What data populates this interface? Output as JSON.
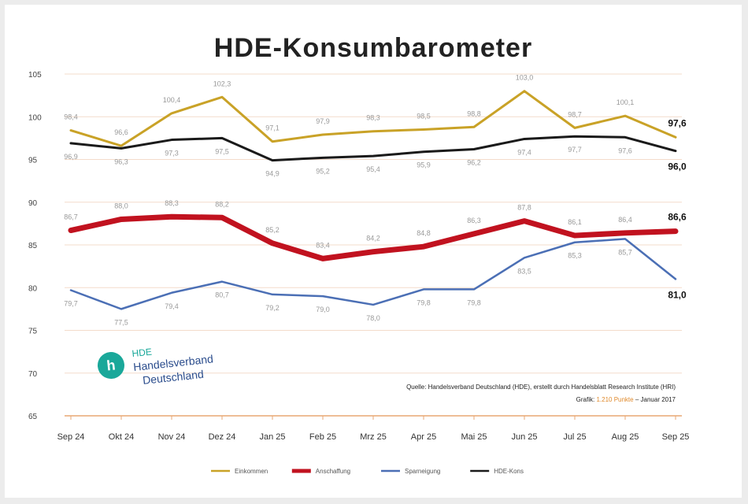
{
  "chart_data": {
    "type": "line",
    "title": "HDE-Konsumbarometer",
    "categories": [
      "Sep 24",
      "Okt 24",
      "Nov 24",
      "Dez 24",
      "Jan 25",
      "Feb 25",
      "Mrz 25",
      "Apr 25",
      "Mai 25",
      "Jun 25",
      "Jul 25",
      "Aug 25",
      "Sep 25"
    ],
    "ylim": [
      65,
      105
    ],
    "yticks": [
      "105",
      "100",
      "95",
      "90",
      "85",
      "80",
      "75",
      "70",
      "65"
    ],
    "grid": true,
    "legend_position": "bottom",
    "series": [
      {
        "name": "Einkommen",
        "color": "#c9a227",
        "width": 3,
        "values": [
          98.4,
          96.6,
          100.4,
          102.3,
          97.1,
          97.9,
          98.3,
          98.5,
          98.8,
          103.0,
          98.7,
          100.1,
          97.6
        ],
        "labels": [
          "98,4",
          "96,6",
          "100,4",
          "102,3",
          "97,1",
          "97,9",
          "98,3",
          "98,5",
          "98,8",
          "103,0",
          "98,7",
          "100,1",
          ""
        ],
        "end_label": "97,6",
        "label_pos": "above"
      },
      {
        "name": "Anschaffung",
        "color": "#c1121f",
        "width": 7,
        "values": [
          86.7,
          88.0,
          88.3,
          88.2,
          85.2,
          83.4,
          84.2,
          84.8,
          86.3,
          87.8,
          86.1,
          86.4,
          86.6
        ],
        "labels": [
          "86,7",
          "88,0",
          "88,3",
          "88,2",
          "85,2",
          "83,4",
          "84,2",
          "84,8",
          "86,3",
          "87,8",
          "86,1",
          "86,4",
          ""
        ],
        "end_label": "86,6",
        "label_pos": "above"
      },
      {
        "name": "Sparneigung",
        "color": "#4b6fb5",
        "width": 2.5,
        "values": [
          79.7,
          77.5,
          79.4,
          80.7,
          79.2,
          79.0,
          78.0,
          79.8,
          79.8,
          83.5,
          85.3,
          85.7,
          81.0
        ],
        "labels": [
          "79,7",
          "77,5",
          "79,4",
          "80,7",
          "79,2",
          "79,0",
          "78,0",
          "79,8",
          "79,8",
          "83,5",
          "85,3",
          "85,7",
          ""
        ],
        "end_label": "81,0",
        "label_pos": "below"
      },
      {
        "name": "HDE-Kons",
        "color": "#1a1a1a",
        "width": 3,
        "values": [
          96.9,
          96.3,
          97.3,
          97.5,
          94.9,
          95.2,
          95.4,
          95.9,
          96.2,
          97.4,
          97.7,
          97.6,
          96.0
        ],
        "labels": [
          "96,9",
          "96,3",
          "97,3",
          "97,5",
          "94,9",
          "95,2",
          "95,4",
          "95,9",
          "96,2",
          "97,4",
          "97,7",
          "97,6",
          ""
        ],
        "end_label": "96,0",
        "label_pos": "below"
      }
    ],
    "source_line1": "Quelle: Handelsverband Deutschland (HDE), erstellt durch Handelsblatt Research Institute (HRI)",
    "source_line2_prefix": "Grafik:",
    "source_line2_highlight": "1.210 Punkte",
    "source_line2_suffix": "– Januar 2017"
  },
  "logo": {
    "hde": "HDE",
    "line1": "Handelsverband",
    "line2": "Deutschland"
  }
}
